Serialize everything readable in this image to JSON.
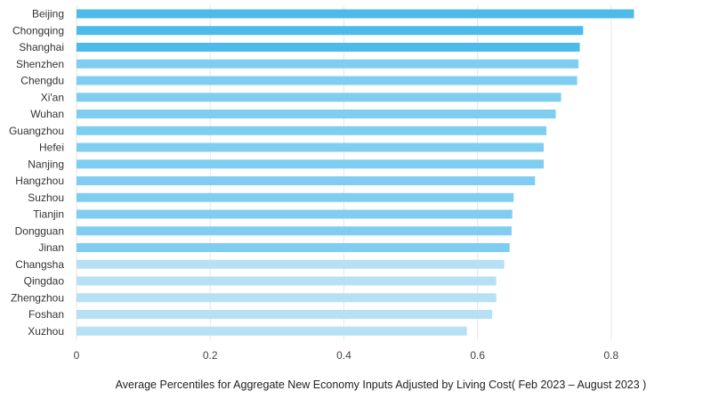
{
  "chart_data": {
    "type": "bar",
    "orientation": "horizontal",
    "categories": [
      "Beijing",
      "Chongqing",
      "Shanghai",
      "Shenzhen",
      "Chengdu",
      "Xi'an",
      "Wuhan",
      "Guangzhou",
      "Hefei",
      "Nanjing",
      "Hangzhou",
      "Suzhou",
      "Tianjin",
      "Dongguan",
      "Jinan",
      "Changsha",
      "Qingdao",
      "Zhengzhou",
      "Foshan",
      "Xuzhou"
    ],
    "values": [
      0.834,
      0.758,
      0.753,
      0.751,
      0.749,
      0.725,
      0.717,
      0.703,
      0.699,
      0.699,
      0.686,
      0.654,
      0.652,
      0.651,
      0.648,
      0.64,
      0.628,
      0.628,
      0.622,
      0.584
    ],
    "bar_colors": [
      "#4dbbea",
      "#4dbbea",
      "#4dbbea",
      "#7fcdf0",
      "#7fcdf0",
      "#7fcdf0",
      "#7fcdf0",
      "#7fcdf0",
      "#7fcdf0",
      "#7fcdf0",
      "#7fcdf0",
      "#7fcdf0",
      "#7fcdf0",
      "#7fcdf0",
      "#7fcdf0",
      "#b6e0f5",
      "#b6e0f5",
      "#b6e0f5",
      "#b6e0f5",
      "#b6e0f5"
    ],
    "xlim": [
      0,
      0.9
    ],
    "xticks": [
      0,
      0.2,
      0.4,
      0.6,
      0.8
    ],
    "xtick_labels": [
      "0",
      "0.2",
      "0.4",
      "0.6",
      "0.8"
    ],
    "xlabel": "Average Percentiles for Aggregate New Economy Inputs Adjusted by Living Cost( Feb 2023 – August 2023 )",
    "ylabel": "",
    "title": "",
    "grid": true,
    "legend": "none"
  }
}
